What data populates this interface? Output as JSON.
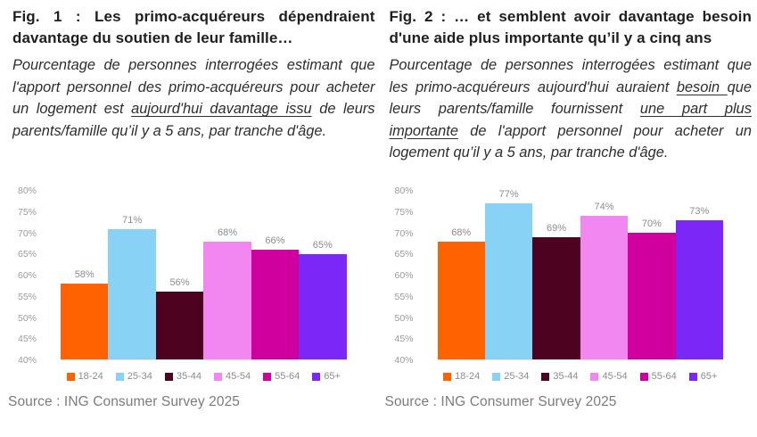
{
  "figures": [
    {
      "title": "Fig. 1 : Les primo-acquéreurs dépendraient davantage du soutien de leur famille…",
      "description_segments": [
        {
          "text": "Pourcentage de personnes interrogées estimant que l'apport personnel des primo-acquéreurs pour acheter un logement est ",
          "underline": false
        },
        {
          "text": "aujourd'hui davantage issu",
          "underline": true
        },
        {
          "text": " de leurs parents/famille qu’il y a 5 ans, par tranche d'âge.",
          "underline": false
        }
      ],
      "source": "Source : ING Consumer Survey 2025"
    },
    {
      "title": "Fig. 2 : … et semblent avoir davantage besoin d'une aide plus importante qu’il y a cinq ans",
      "description_segments": [
        {
          "text": "Pourcentage de personnes interrogées estimant que les primo-acquéreurs aujourd'hui auraient ",
          "underline": false
        },
        {
          "text": "besoin ",
          "underline": true
        },
        {
          "text": "que leurs parents/famille fournissent ",
          "underline": false
        },
        {
          "text": "une part plus importante",
          "underline": true
        },
        {
          "text": " de l'apport personnel pour acheter un logement qu’il y a 5 ans, par tranche d'âge.",
          "underline": false
        }
      ],
      "source": "Source : ING Consumer Survey 2025"
    }
  ],
  "chart_data": [
    {
      "type": "bar",
      "title": "Fig. 1 : Les primo-acquéreurs dépendraient davantage du soutien de leur famille…",
      "categories": [
        "18-24",
        "25-34",
        "35-44",
        "45-54",
        "55-64",
        "65+"
      ],
      "values": [
        58,
        71,
        56,
        68,
        66,
        65
      ],
      "value_labels": [
        "58%",
        "71%",
        "56%",
        "68%",
        "66%",
        "65%"
      ],
      "colors": [
        "#FF6200",
        "#87D2F5",
        "#4D0220",
        "#F287F2",
        "#D0009E",
        "#7A27F7"
      ],
      "xlabel": "",
      "ylabel": "",
      "ylim": [
        40,
        80
      ],
      "ytick_labels": [
        "80%",
        "75%",
        "70%",
        "65%",
        "60%",
        "55%",
        "50%",
        "45%",
        "40%"
      ],
      "grid": false,
      "legend_position": "bottom"
    },
    {
      "type": "bar",
      "title": "Fig. 2 : … et semblent avoir davantage besoin d'une aide plus importante qu’il y a cinq ans",
      "categories": [
        "18-24",
        "25-34",
        "35-44",
        "45-54",
        "55-64",
        "65+"
      ],
      "values": [
        68,
        77,
        69,
        74,
        70,
        73
      ],
      "value_labels": [
        "68%",
        "77%",
        "69%",
        "74%",
        "70%",
        "73%"
      ],
      "colors": [
        "#FF6200",
        "#87D2F5",
        "#4D0220",
        "#F287F2",
        "#D0009E",
        "#7A27F7"
      ],
      "xlabel": "",
      "ylabel": "",
      "ylim": [
        40,
        80
      ],
      "ytick_labels": [
        "80%",
        "75%",
        "70%",
        "65%",
        "60%",
        "55%",
        "50%",
        "45%",
        "40%"
      ],
      "grid": false,
      "legend_position": "bottom"
    }
  ]
}
